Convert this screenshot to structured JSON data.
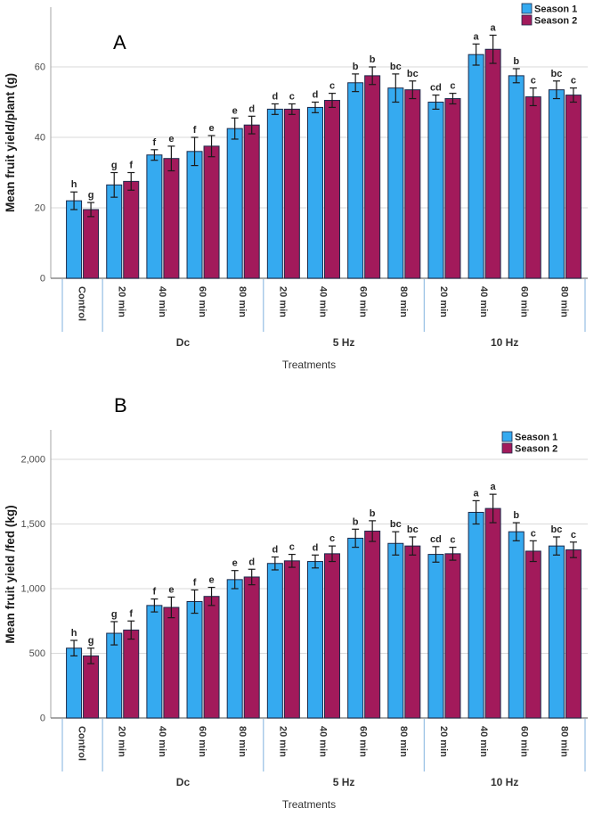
{
  "figure": {
    "description": "Two-panel bar figure comparing Season 1 and Season 2 mean fruit yield across electrical treatments"
  },
  "style": {
    "season1_color": "#35aaf0",
    "season2_color": "#a21a5b",
    "bar_border": "#1c2a4a",
    "gridline": "#d9d9d9",
    "y_axis_line": "#b3b3b3",
    "x_axis_line": "#8a8a8a",
    "separator_line": "#9dc3e6",
    "error_bar": "#1a1a1a",
    "letter_color": "#262626",
    "tick_label_color": "#4d4d4d",
    "category_label_color": "#333333"
  },
  "chart_data": [
    {
      "id": "A",
      "panel_label": "A",
      "type": "bar",
      "title": "",
      "ylabel": "Mean fruit yield/plant (g)",
      "xlabel": "Treatments",
      "ylim": [
        0,
        77
      ],
      "yticks": [
        0,
        20,
        40,
        60
      ],
      "ytick_labels": [
        "0",
        "20",
        "40",
        "60"
      ],
      "grid": "horizontal",
      "legend_position": "top-right",
      "legend": [
        "Season 1",
        "Season 2"
      ],
      "groups": [
        {
          "label": "",
          "categories": [
            "Control"
          ]
        },
        {
          "label": "Dc",
          "categories": [
            "20 min",
            "40 min",
            "60 min",
            "80 min"
          ]
        },
        {
          "label": "5 Hz",
          "categories": [
            "20 min",
            "40 min",
            "60 min",
            "80 min"
          ]
        },
        {
          "label": "10 Hz",
          "categories": [
            "20 min",
            "40 min",
            "60 min",
            "80 min"
          ]
        }
      ],
      "categories": [
        "Control",
        "20 min",
        "40 min",
        "60 min",
        "80 min",
        "20 min",
        "40 min",
        "60 min",
        "80 min",
        "20 min",
        "40 min",
        "60 min",
        "80 min"
      ],
      "series": [
        {
          "name": "Season 1",
          "color": "#35aaf0",
          "values": [
            22,
            26.5,
            35,
            36,
            42.5,
            48,
            48.5,
            55.5,
            54,
            50,
            63.5,
            57.5,
            53.5
          ],
          "errors": [
            2.5,
            3.5,
            1.5,
            4,
            3,
            1.5,
            1.5,
            2.5,
            4,
            2,
            3,
            2,
            2.5
          ],
          "letters": [
            "h",
            "g",
            "f",
            "f",
            "e",
            "d",
            "d",
            "b",
            "bc",
            "cd",
            "a",
            "b",
            "bc"
          ]
        },
        {
          "name": "Season 2",
          "color": "#a21a5b",
          "values": [
            19.5,
            27.5,
            34,
            37.5,
            43.5,
            48,
            50.5,
            57.5,
            53.5,
            51,
            65,
            51.5,
            52
          ],
          "errors": [
            2,
            2.5,
            3.5,
            3,
            2.5,
            1.5,
            2,
            2.5,
            2.5,
            1.5,
            4,
            2.5,
            2
          ],
          "letters": [
            "g",
            "f",
            "e",
            "e",
            "d",
            "c",
            "c",
            "b",
            "bc",
            "c",
            "a",
            "c",
            "c"
          ]
        }
      ]
    },
    {
      "id": "B",
      "panel_label": "B",
      "type": "bar",
      "title": "",
      "ylabel": "Mean fruit yield /fed (kg)",
      "xlabel": "Treatments",
      "ylim": [
        0,
        2230
      ],
      "yticks": [
        0,
        500,
        1000,
        1500,
        2000
      ],
      "ytick_labels": [
        "0",
        "500",
        "1,000",
        "1,500",
        "2,000"
      ],
      "grid": "horizontal",
      "legend_position": "top-right",
      "legend": [
        "Season 1",
        "Season 2"
      ],
      "groups": [
        {
          "label": "",
          "categories": [
            "Control"
          ]
        },
        {
          "label": "Dc",
          "categories": [
            "20 min",
            "40 min",
            "60 min",
            "80 min"
          ]
        },
        {
          "label": "5 Hz",
          "categories": [
            "20 min",
            "40 min",
            "60 min",
            "80 min"
          ]
        },
        {
          "label": "10 Hz",
          "categories": [
            "20 min",
            "40 min",
            "60 min",
            "80 min"
          ]
        }
      ],
      "categories": [
        "Control",
        "20 min",
        "40 min",
        "60 min",
        "80 min",
        "20 min",
        "40 min",
        "60 min",
        "80 min",
        "20 min",
        "40 min",
        "60 min",
        "80 min"
      ],
      "series": [
        {
          "name": "Season 1",
          "color": "#35aaf0",
          "values": [
            540,
            655,
            870,
            900,
            1070,
            1195,
            1210,
            1390,
            1350,
            1265,
            1590,
            1440,
            1330
          ],
          "errors": [
            60,
            90,
            50,
            90,
            70,
            50,
            50,
            70,
            90,
            60,
            90,
            70,
            70
          ],
          "letters": [
            "h",
            "g",
            "f",
            "f",
            "e",
            "d",
            "d",
            "b",
            "bc",
            "cd",
            "a",
            "b",
            "bc"
          ]
        },
        {
          "name": "Season 2",
          "color": "#a21a5b",
          "values": [
            480,
            680,
            855,
            940,
            1090,
            1215,
            1270,
            1445,
            1330,
            1270,
            1620,
            1290,
            1300
          ],
          "errors": [
            60,
            70,
            80,
            70,
            60,
            50,
            60,
            80,
            70,
            50,
            110,
            80,
            60
          ],
          "letters": [
            "g",
            "f",
            "e",
            "e",
            "d",
            "c",
            "c",
            "b",
            "bc",
            "c",
            "a",
            "c",
            "c"
          ]
        }
      ]
    }
  ]
}
